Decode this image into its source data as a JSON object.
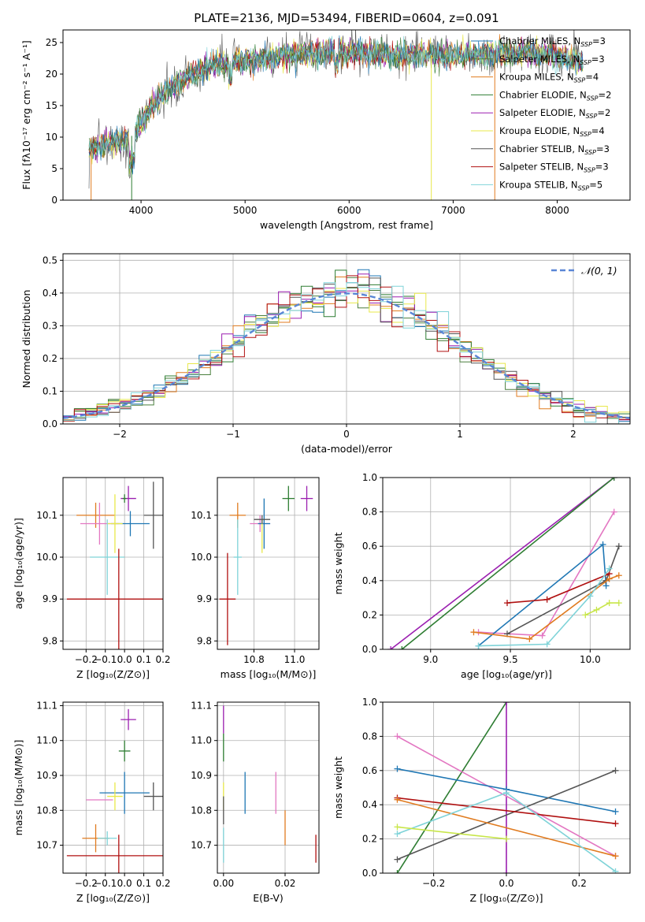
{
  "title": "PLATE=2136, MJD=53494, FIBERID=0604, z=0.091",
  "colors": {
    "Chabrier MILES": "#1f77b4",
    "Salpeter MILES": "#4a7f3d",
    "Kroupa MILES": "#e07b1f",
    "Chabrier ELODIE": "#2e7d32",
    "Salpeter ELODIE": "#9b1fb0",
    "Kroupa ELODIE": "#e8e84a",
    "Chabrier STELIB": "#555555",
    "Salpeter STELIB": "#b01010",
    "Kroupa STELIB": "#7fd3d8",
    "extra_pink": "#e377c2",
    "extra_blue": "#5a86d6",
    "extra_lime": "#c8e64a",
    "normal_curve": "#5a86d6"
  },
  "legend_spectrum": [
    {
      "text": "Chabrier MILES, N",
      "sub": "SSP",
      "tail": "=3"
    },
    {
      "text": "Salpeter MILES, N",
      "sub": "SSP",
      "tail": "=3"
    },
    {
      "text": "Kroupa MILES, N",
      "sub": "SSP",
      "tail": "=4"
    },
    {
      "text": "Chabrier ELODIE, N",
      "sub": "SSP",
      "tail": "=2"
    },
    {
      "text": "Salpeter ELODIE, N",
      "sub": "SSP",
      "tail": "=2"
    },
    {
      "text": "Kroupa ELODIE, N",
      "sub": "SSP",
      "tail": "=4"
    },
    {
      "text": "Chabrier STELIB, N",
      "sub": "SSP",
      "tail": "=3"
    },
    {
      "text": "Salpeter STELIB, N",
      "sub": "SSP",
      "tail": "=3"
    },
    {
      "text": "Kroupa STELIB, N",
      "sub": "SSP",
      "tail": "=5"
    }
  ],
  "legend_hist": "𝒩(0, 1)",
  "chart_data": [
    {
      "type": "line",
      "id": "spectrum",
      "xlabel": "wavelength [Angstrom, rest frame]",
      "ylabel": "Flux [fλ10⁻¹⁷ erg cm⁻² s⁻¹ A⁻¹]",
      "xlim": [
        3250,
        8700
      ],
      "ylim": [
        0,
        27
      ],
      "xticks": [
        4000,
        5000,
        6000,
        7000,
        8000
      ],
      "yticks": [
        0,
        5,
        10,
        15,
        20,
        25
      ],
      "continuum": {
        "x": [
          3500,
          3700,
          3900,
          4000,
          4100,
          4300,
          4500,
          4700,
          4900,
          5200,
          5500,
          5800,
          6100,
          6400,
          6700,
          7000,
          7300,
          7600,
          7900,
          8200
        ],
        "y": [
          8,
          9,
          10,
          12,
          15,
          18,
          20,
          21.5,
          22,
          22.5,
          23,
          23.5,
          23.5,
          23,
          23,
          23,
          23,
          23.5,
          23,
          22
        ]
      },
      "dips": [
        [
          3520,
          0
        ],
        [
          3910,
          0
        ],
        [
          6790,
          0
        ],
        [
          7400,
          0
        ]
      ]
    },
    {
      "type": "bar",
      "id": "residual_hist",
      "xlabel": "(data-model)/error",
      "ylabel": "Normed distribution",
      "xlim": [
        -2.5,
        2.5
      ],
      "ylim": [
        0,
        0.52
      ],
      "xticks": [
        -2,
        -1,
        0,
        1,
        2
      ],
      "yticks": [
        0.0,
        0.1,
        0.2,
        0.3,
        0.4,
        0.5
      ],
      "bin_width": 0.1,
      "normal": {
        "mu": 0,
        "sigma": 1
      }
    },
    {
      "type": "scatter",
      "id": "age_vs_Z",
      "xlabel": "Z [log₁₀(Z/Z⊙)]",
      "ylabel": "age  [log₁₀(age/yr)]",
      "xlim": [
        -0.32,
        0.2
      ],
      "ylim": [
        9.78,
        10.19
      ],
      "xticks": [
        -0.2,
        -0.1,
        0.0,
        0.1,
        0.2
      ],
      "yticks": [
        9.8,
        9.9,
        10.0,
        10.1
      ],
      "points": [
        {
          "c": "Kroupa MILES",
          "x": -0.15,
          "y": 10.1,
          "ex": 0.1,
          "ey": 0.03
        },
        {
          "c": "Chabrier MILES",
          "x": 0.03,
          "y": 10.08,
          "ex": 0.1,
          "ey": 0.03
        },
        {
          "c": "Salpeter ELODIE",
          "x": 0.02,
          "y": 10.14,
          "ex": 0.04,
          "ey": 0.03
        },
        {
          "c": "Chabrier ELODIE",
          "x": 0.0,
          "y": 10.14,
          "ex": 0.01,
          "ey": 0.01
        },
        {
          "c": "Chabrier STELIB",
          "x": 0.15,
          "y": 10.1,
          "ex": 0.05,
          "ey": 0.08
        },
        {
          "c": "extra_pink",
          "x": -0.13,
          "y": 10.08,
          "ex": 0.1,
          "ey": 0.05
        },
        {
          "c": "Kroupa ELODIE",
          "x": -0.05,
          "y": 10.08,
          "ex": 0.04,
          "ey": 0.07
        },
        {
          "c": "Kroupa STELIB",
          "x": -0.09,
          "y": 10.0,
          "ex": 0.09,
          "ey": 0.09
        },
        {
          "c": "Salpeter STELIB",
          "x": -0.03,
          "y": 9.9,
          "ex": 0.27,
          "ey": 0.12
        }
      ]
    },
    {
      "type": "scatter",
      "id": "age_vs_mass",
      "xlabel": "mass [log₁₀(M/M⊙)]",
      "ylabel": "",
      "xlim": [
        10.62,
        11.12
      ],
      "ylim": [
        9.78,
        10.19
      ],
      "xticks": [
        10.8,
        11.0
      ],
      "yticks": [
        9.8,
        9.9,
        10.0,
        10.1
      ],
      "points": [
        {
          "c": "Kroupa MILES",
          "x": 10.72,
          "y": 10.1,
          "ex": 0.04,
          "ey": 0.03
        },
        {
          "c": "extra_pink",
          "x": 10.83,
          "y": 10.08,
          "ex": 0.05,
          "ey": 0.02
        },
        {
          "c": "Chabrier MILES",
          "x": 10.85,
          "y": 10.08,
          "ex": 0.03,
          "ey": 0.06
        },
        {
          "c": "Kroupa ELODIE",
          "x": 10.84,
          "y": 10.05,
          "ex": 0.0,
          "ey": 0.04
        },
        {
          "c": "Chabrier ELODIE",
          "x": 10.97,
          "y": 10.14,
          "ex": 0.03,
          "ey": 0.03
        },
        {
          "c": "Salpeter ELODIE",
          "x": 11.06,
          "y": 10.14,
          "ex": 0.03,
          "ey": 0.03
        },
        {
          "c": "Chabrier STELIB",
          "x": 10.84,
          "y": 10.09,
          "ex": 0.04,
          "ey": 0.01
        },
        {
          "c": "Kroupa STELIB",
          "x": 10.72,
          "y": 10.0,
          "ex": 0.02,
          "ey": 0.09
        },
        {
          "c": "Salpeter STELIB",
          "x": 10.67,
          "y": 9.9,
          "ex": 0.04,
          "ey": 0.11
        }
      ]
    },
    {
      "type": "line",
      "id": "massweight_vs_age",
      "xlabel": "age  [log₁₀(age/yr)]",
      "ylabel": "mass weight",
      "xlim": [
        8.7,
        10.25
      ],
      "ylim": [
        0,
        1
      ],
      "xticks": [
        9.0,
        9.5,
        10.0
      ],
      "yticks": [
        0.0,
        0.2,
        0.4,
        0.6,
        0.8,
        1.0
      ],
      "series": [
        {
          "c": "Salpeter ELODIE",
          "x": [
            8.75,
            10.15
          ],
          "y": [
            0.0,
            1.0
          ]
        },
        {
          "c": "Chabrier ELODIE",
          "x": [
            8.82,
            10.15
          ],
          "y": [
            0.0,
            1.0
          ]
        },
        {
          "c": "extra_pink",
          "x": [
            9.3,
            9.7,
            10.15
          ],
          "y": [
            0.1,
            0.08,
            0.8
          ]
        },
        {
          "c": "Chabrier MILES",
          "x": [
            9.3,
            10.08,
            10.1
          ],
          "y": [
            0.02,
            0.61,
            0.37
          ]
        },
        {
          "c": "Chabrier STELIB",
          "x": [
            9.48,
            10.1,
            10.18
          ],
          "y": [
            0.09,
            0.4,
            0.6
          ]
        },
        {
          "c": "Salpeter STELIB",
          "x": [
            9.48,
            9.73,
            10.12
          ],
          "y": [
            0.27,
            0.29,
            0.44
          ]
        },
        {
          "c": "Kroupa MILES",
          "x": [
            9.27,
            9.62,
            10.12,
            10.18
          ],
          "y": [
            0.1,
            0.06,
            0.41,
            0.43
          ]
        },
        {
          "c": "Kroupa STELIB",
          "x": [
            9.3,
            9.73,
            10.0,
            10.12
          ],
          "y": [
            0.02,
            0.03,
            0.31,
            0.47
          ]
        },
        {
          "c": "extra_lime",
          "x": [
            9.97,
            10.04,
            10.12,
            10.18
          ],
          "y": [
            0.2,
            0.23,
            0.27,
            0.27
          ]
        }
      ]
    },
    {
      "type": "scatter",
      "id": "mass_vs_Z",
      "xlabel": "Z [log₁₀(Z/Z⊙)]",
      "ylabel": "mass [log₁₀(M/M⊙)]",
      "xlim": [
        -0.32,
        0.2
      ],
      "ylim": [
        10.62,
        11.11
      ],
      "xticks": [
        -0.2,
        -0.1,
        0.0,
        0.1,
        0.2
      ],
      "yticks": [
        10.7,
        10.8,
        10.9,
        11.0,
        11.1
      ],
      "points": [
        {
          "c": "Salpeter ELODIE",
          "x": 0.02,
          "y": 11.06,
          "ex": 0.04,
          "ey": 0.03
        },
        {
          "c": "Chabrier ELODIE",
          "x": 0.0,
          "y": 10.97,
          "ex": 0.03,
          "ey": 0.03
        },
        {
          "c": "Chabrier MILES",
          "x": 0.0,
          "y": 10.85,
          "ex": 0.13,
          "ey": 0.06
        },
        {
          "c": "Chabrier STELIB",
          "x": 0.15,
          "y": 10.84,
          "ex": 0.05,
          "ey": 0.04
        },
        {
          "c": "Kroupa ELODIE",
          "x": -0.05,
          "y": 10.84,
          "ex": 0.04,
          "ey": 0.04
        },
        {
          "c": "extra_pink",
          "x": -0.13,
          "y": 10.83,
          "ex": 0.07,
          "ey": 0.0
        },
        {
          "c": "Kroupa MILES",
          "x": -0.15,
          "y": 10.72,
          "ex": 0.07,
          "ey": 0.04
        },
        {
          "c": "Kroupa STELIB",
          "x": -0.09,
          "y": 10.72,
          "ex": 0.05,
          "ey": 0.02
        },
        {
          "c": "Salpeter STELIB",
          "x": -0.03,
          "y": 10.67,
          "ex": 0.27,
          "ey": 0.06
        }
      ]
    },
    {
      "type": "scatter",
      "id": "mass_vs_ebv",
      "xlabel": "E(B-V)",
      "ylabel": "",
      "xlim": [
        -0.002,
        0.031
      ],
      "ylim": [
        10.62,
        11.11
      ],
      "xticks": [
        0.0,
        0.02
      ],
      "yticks": [
        10.7,
        10.8,
        10.9,
        11.0,
        11.1
      ],
      "points": [
        {
          "c": "Salpeter ELODIE",
          "x": 0.0,
          "y": 11.06,
          "ex": 0,
          "ey": 0.04
        },
        {
          "c": "Chabrier ELODIE",
          "x": 0.0,
          "y": 10.98,
          "ex": 0,
          "ey": 0.04
        },
        {
          "c": "Kroupa ELODIE",
          "x": 0.0,
          "y": 10.84,
          "ex": 0,
          "ey": 0.04
        },
        {
          "c": "Chabrier STELIB",
          "x": 0.0,
          "y": 10.8,
          "ex": 0,
          "ey": 0.04
        },
        {
          "c": "Kroupa STELIB",
          "x": 0.0,
          "y": 10.7,
          "ex": 0,
          "ey": 0.05
        },
        {
          "c": "Chabrier MILES",
          "x": 0.007,
          "y": 10.85,
          "ex": 0,
          "ey": 0.06
        },
        {
          "c": "extra_pink",
          "x": 0.017,
          "y": 10.85,
          "ex": 0,
          "ey": 0.06
        },
        {
          "c": "Kroupa MILES",
          "x": 0.02,
          "y": 10.75,
          "ex": 0,
          "ey": 0.05
        },
        {
          "c": "Salpeter STELIB",
          "x": 0.03,
          "y": 10.69,
          "ex": 0,
          "ey": 0.04
        }
      ]
    },
    {
      "type": "line",
      "id": "massweight_vs_Z",
      "xlabel": "Z [log₁₀(Z/Z⊙)]",
      "ylabel": "mass weight",
      "xlim": [
        -0.34,
        0.34
      ],
      "ylim": [
        0,
        1
      ],
      "xticks": [
        -0.2,
        0.0,
        0.2
      ],
      "yticks": [
        0.0,
        0.2,
        0.4,
        0.6,
        0.8,
        1.0
      ],
      "series": [
        {
          "c": "Chabrier ELODIE",
          "x": [
            -0.3,
            0.0
          ],
          "y": [
            0.0,
            1.0
          ]
        },
        {
          "c": "Salpeter ELODIE",
          "x": [
            0.0,
            0.0
          ],
          "y": [
            0.0,
            1.0
          ]
        },
        {
          "c": "extra_pink",
          "x": [
            -0.3,
            0.3
          ],
          "y": [
            0.8,
            0.1
          ]
        },
        {
          "c": "Chabrier MILES",
          "x": [
            -0.3,
            0.0,
            0.3
          ],
          "y": [
            0.61,
            0.49,
            0.36
          ]
        },
        {
          "c": "Chabrier STELIB",
          "x": [
            -0.3,
            0.3
          ],
          "y": [
            0.08,
            0.6
          ]
        },
        {
          "c": "Salpeter STELIB",
          "x": [
            -0.3,
            0.3
          ],
          "y": [
            0.44,
            0.29
          ]
        },
        {
          "c": "Kroupa MILES",
          "x": [
            -0.3,
            0.3
          ],
          "y": [
            0.43,
            0.1
          ]
        },
        {
          "c": "Kroupa STELIB",
          "x": [
            -0.3,
            0.0,
            0.3
          ],
          "y": [
            0.23,
            0.47,
            0.01
          ]
        },
        {
          "c": "extra_lime",
          "x": [
            -0.3,
            0.0
          ],
          "y": [
            0.27,
            0.2
          ]
        }
      ]
    }
  ]
}
